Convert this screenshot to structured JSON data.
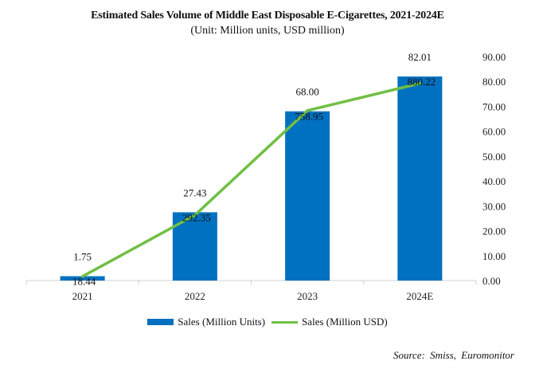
{
  "chart_data": {
    "type": "bar",
    "title": "Estimated Sales  Volume of Middle East  Disposable E-Cigarettes,  2021-2024E",
    "subtitle": "(Unit: Million units, USD million)",
    "categories": [
      "2021",
      "2022",
      "2023",
      "2024E"
    ],
    "series": [
      {
        "name": "Sales (Million Units)",
        "type": "bar",
        "color": "#0070C0",
        "values": [
          1.75,
          27.43,
          68.0,
          82.01
        ],
        "labels": [
          "1.75",
          "27.43",
          "68.00",
          "82.01"
        ]
      },
      {
        "name": "Sales (Million USD)",
        "type": "line",
        "color": "#70BF44",
        "values": [
          18.44,
          292.35,
          758.95,
          880.22
        ],
        "labels": [
          "18.44",
          "292.35",
          "758.95",
          "880.22"
        ],
        "axis": "secondary-hidden",
        "ylim": [
          0,
          1000
        ]
      }
    ],
    "yaxis": {
      "position": "right",
      "ylim": [
        0,
        90
      ],
      "ticks": [
        "0.00",
        "10.00",
        "20.00",
        "30.00",
        "40.00",
        "50.00",
        "60.00",
        "70.00",
        "80.00",
        "90.00"
      ]
    },
    "xlabel": "",
    "ylabel": "",
    "grid": false,
    "legend": "bottom",
    "source": "Source:  Smiss,  Euromonitor"
  }
}
